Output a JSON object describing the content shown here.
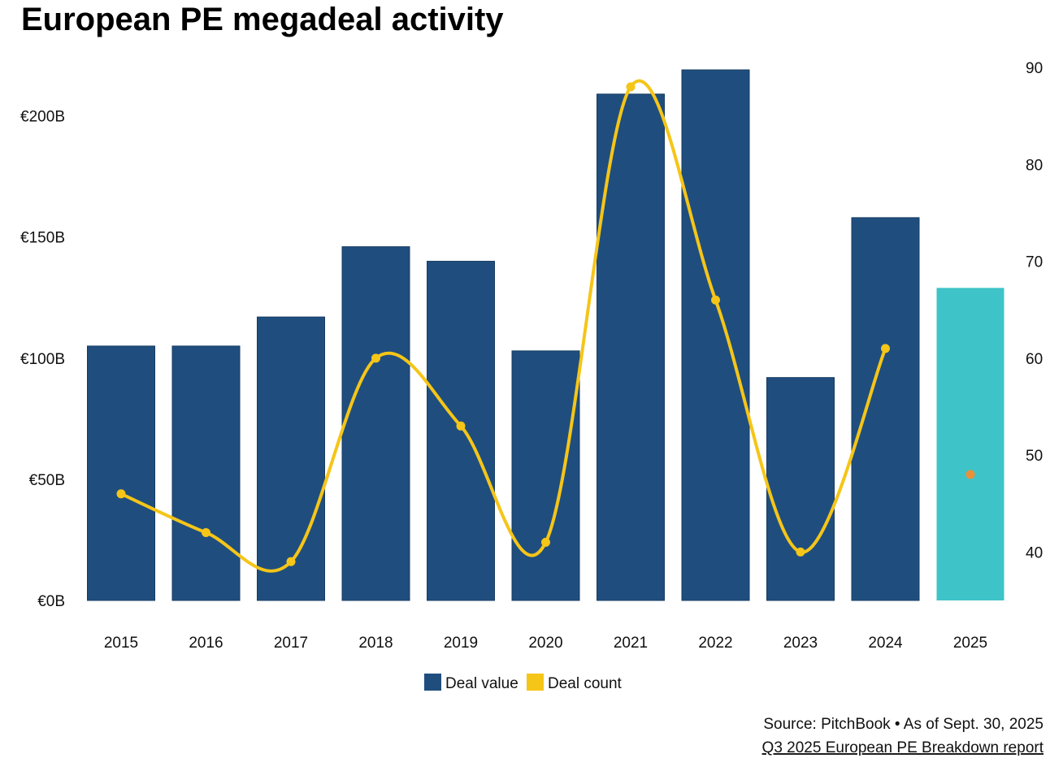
{
  "chart_data": {
    "type": "bar+line",
    "title": "European PE megadeal activity",
    "categories": [
      "2015",
      "2016",
      "2017",
      "2018",
      "2019",
      "2020",
      "2021",
      "2022",
      "2023",
      "2024",
      "2025"
    ],
    "series": [
      {
        "name": "Deal value",
        "type": "bar",
        "axis": "left",
        "values": [
          105,
          105,
          117,
          146,
          140,
          103,
          209,
          219,
          92,
          158,
          129
        ],
        "color": "#1f4e7e",
        "highlight_last_color": "#3ec3c8"
      },
      {
        "name": "Deal count",
        "type": "line",
        "axis": "right",
        "values": [
          46,
          42,
          39,
          60,
          53,
          41,
          88,
          66,
          40,
          61,
          48
        ],
        "color": "#f5c518",
        "last_point_color": "#e8903a",
        "smooth": true
      }
    ],
    "left_axis": {
      "ticks": [
        0,
        50,
        100,
        150,
        200
      ],
      "tick_labels": [
        "€0B",
        "€50B",
        "€100B",
        "€150B",
        "€200B"
      ],
      "range": [
        0,
        220
      ]
    },
    "right_axis": {
      "ticks": [
        40,
        50,
        60,
        70,
        80,
        90
      ],
      "tick_labels": [
        "40",
        "50",
        "60",
        "70",
        "80",
        "90"
      ],
      "range": [
        35,
        90
      ]
    },
    "grid": false,
    "legend_position": "bottom-center"
  },
  "legend": [
    "Deal value",
    "Deal count"
  ],
  "footer": {
    "source": "Source: PitchBook • As of Sept. 30, 2025",
    "report_link": "Q3 2025 European PE Breakdown report"
  }
}
